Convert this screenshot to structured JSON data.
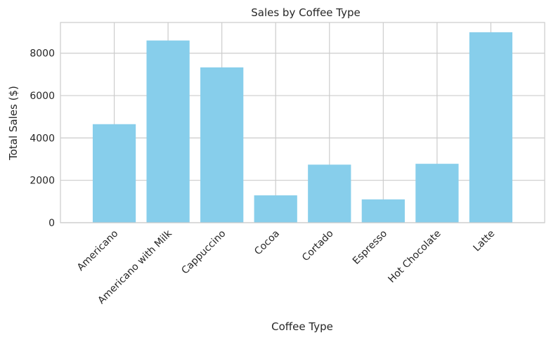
{
  "chart_data": {
    "type": "bar",
    "title": "Sales by Coffee Type",
    "xlabel": "Coffee Type",
    "ylabel": "Total Sales ($)",
    "categories": [
      "Americano",
      "Americano with Milk",
      "Cappuccino",
      "Cocoa",
      "Cortado",
      "Espresso",
      "Hot Chocolate",
      "Latte"
    ],
    "values": [
      4650,
      8600,
      7330,
      1290,
      2740,
      1100,
      2780,
      8990
    ],
    "ylim": [
      0,
      9450
    ],
    "yticks": [
      0,
      2000,
      4000,
      6000,
      8000
    ],
    "grid": true,
    "bar_color": "#87ceeb"
  }
}
